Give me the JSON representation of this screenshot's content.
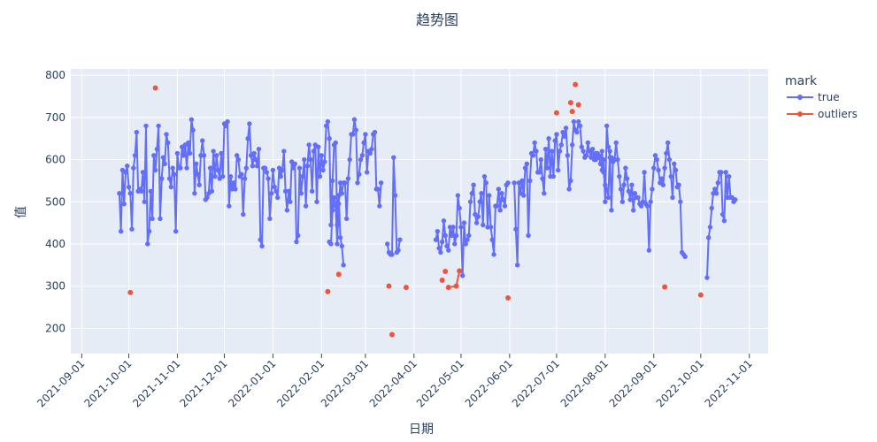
{
  "chart_data": {
    "type": "line",
    "title": "趋势图",
    "xlabel": "日期",
    "ylabel": "值",
    "legend_title": "mark",
    "legend_position": "right",
    "grid": true,
    "plot_bgcolor": "#e5ecf6",
    "xlim": [
      "2021-08-25",
      "2022-11-13"
    ],
    "ylim": [
      140,
      815
    ],
    "x_ticks": [
      "2021-09-01",
      "2021-10-01",
      "2021-11-01",
      "2021-12-01",
      "2022-01-01",
      "2022-02-01",
      "2022-03-01",
      "2022-04-01",
      "2022-05-01",
      "2022-06-01",
      "2022-07-01",
      "2022-08-01",
      "2022-09-01",
      "2022-10-01",
      "2022-11-01"
    ],
    "y_ticks": [
      200,
      300,
      400,
      500,
      600,
      700,
      800
    ],
    "series": [
      {
        "name": "true",
        "color": "#636efa",
        "mode": "lines+markers",
        "segments": [
          {
            "start": "2021-09-25",
            "values": [
              520,
              430,
              575,
              495,
              570,
              585,
              535,
              520,
              435,
              580,
              610,
              665,
              525,
              530,
              525,
              570,
              500,
              680,
              400,
              430,
              525,
              460,
              610,
              575,
              625,
              680,
              460,
              555,
              605,
              590,
              660,
              640,
              555,
              535,
              580,
              565,
              430,
              615,
              580,
              580,
              630,
              610,
              635,
              580,
              640,
              615,
              695,
              670,
              520,
              590,
              565,
              540,
              610,
              645,
              610,
              505,
              510,
              520,
              580,
              525,
              620,
              560,
              610,
              575,
              555,
              615,
              560,
              685,
              680,
              690,
              490,
              560,
              530,
              545,
              530,
              610,
              600,
              560,
              565,
              470,
              555,
              580,
              650,
              685,
              610,
              585,
              615,
              600,
              585,
              625,
              410,
              395,
              580,
              580,
              570,
              555,
              460,
              520,
              575,
              535,
              525,
              510,
              580,
              560,
              575,
              620,
              525,
              480,
              525,
              500,
              595,
              580,
              590,
              405,
              420,
              580,
              520,
              560,
              600,
              490,
              585,
              635,
              600,
              525,
              620,
              635,
              500,
              630,
              560,
              610,
              575,
              595,
              680,
              690,
              650,
              445,
              550,
              635,
              640,
              445,
              515,
              415,
              395,
              350
            ]
          },
          {
            "start": "2022-02-06",
            "values": [
              405,
              400,
              480,
              510,
              490,
              400,
              495,
              545,
              520,
              545,
              545,
              460,
              555,
              600,
              660,
              660,
              695,
              670,
              545,
              565,
              600,
              610,
              640,
              660,
              570,
              620,
              615,
              625,
              660,
              665,
              530,
              530,
              490,
              545
            ]
          },
          {
            "start": "2022-03-15",
            "values": [
              400,
              380,
              375,
              375,
              605,
              515,
              380,
              385,
              410
            ]
          },
          {
            "start": "2022-04-15",
            "values": [
              410,
              430,
              390,
              380,
              405,
              455,
              420,
              395,
              385,
              440,
              420,
              440,
              400,
              420,
              515,
              485,
              440,
              325,
              450,
              400,
              410,
              420,
              500,
              520,
              540,
              470,
              450,
              465,
              500,
              520,
              445,
              560,
              545,
              440,
              515,
              440,
              410,
              375,
              490,
              490,
              530,
              480,
              520,
              505,
              490,
              540,
              545
            ]
          },
          {
            "start": "2022-06-04",
            "values": [
              545,
              435,
              350,
              545,
              520,
              550,
              515,
              580,
              590,
              420,
              550,
              615,
              610,
              640,
              620,
              570,
              570,
              600,
              555,
              520,
              625,
              580,
              650,
              560,
              620,
              560,
              645,
              660,
              575,
              620,
              635,
              665,
              655,
              675,
              610,
              530,
              550,
              635,
              690,
              670,
              665,
              690,
              680,
              630,
              620,
              605,
              610,
              640,
              620,
              605,
              625,
              600,
              615,
              615,
              605,
              605,
              575,
              600,
              500,
              680,
              630,
              605,
              605,
              595,
              600
            ]
          },
          {
            "start": "2022-07-26",
            "values": [
              600,
              615,
              610,
              590,
              620,
              570,
              540,
              530,
              510,
              620,
              480,
              600,
              600,
              640,
              600,
              560,
              530,
              500,
              540,
              580,
              555,
              525,
              505,
              540,
              480,
              520,
              510,
              510,
              495,
              490,
              500,
              570,
              495,
              490,
              385,
              500,
              530,
              580,
              610,
              600,
              575,
              545,
              555,
              540,
              580,
              615,
              640,
              600,
              560,
              510,
              590,
              575,
              535,
              540,
              500,
              380,
              375,
              370
            ]
          },
          {
            "start": "2022-10-05",
            "values": [
              320,
              415,
              440,
              485,
              520,
              530,
              520,
              545,
              570,
              570,
              470,
              455,
              570,
              510,
              560,
              510,
              510,
              500,
              505
            ]
          }
        ]
      },
      {
        "name": "outliers",
        "color": "#ef553b",
        "mode": "lines+markers",
        "points": [
          {
            "x": "2021-10-02",
            "y": 285
          },
          {
            "x": "2021-10-18",
            "y": 770
          },
          {
            "x": "2022-02-05",
            "y": 287
          },
          {
            "x": "2022-02-12",
            "y": 328
          },
          {
            "x": "2022-03-16",
            "y": 300
          },
          {
            "x": "2022-03-18",
            "y": 185
          },
          {
            "x": "2022-03-27",
            "y": 297
          },
          {
            "x": "2022-04-19",
            "y": 314
          },
          {
            "x": "2022-04-21",
            "y": 335
          },
          {
            "x": "2022-04-23",
            "y": 297
          },
          {
            "x": "2022-04-28",
            "y": 300
          },
          {
            "x": "2022-04-30",
            "y": 336
          },
          {
            "x": "2022-05-31",
            "y": 272
          },
          {
            "x": "2022-07-01",
            "y": 711
          },
          {
            "x": "2022-07-10",
            "y": 735
          },
          {
            "x": "2022-07-11",
            "y": 714
          },
          {
            "x": "2022-07-13",
            "y": 778
          },
          {
            "x": "2022-07-15",
            "y": 730
          },
          {
            "x": "2022-09-08",
            "y": 298
          },
          {
            "x": "2022-10-01",
            "y": 279
          }
        ],
        "connected_pairs": [
          [
            9,
            10
          ],
          [
            10,
            11
          ]
        ]
      }
    ]
  },
  "legend": {
    "title": "mark",
    "items": [
      {
        "label": "true",
        "color": "#636efa"
      },
      {
        "label": "outliers",
        "color": "#ef553b"
      }
    ]
  }
}
